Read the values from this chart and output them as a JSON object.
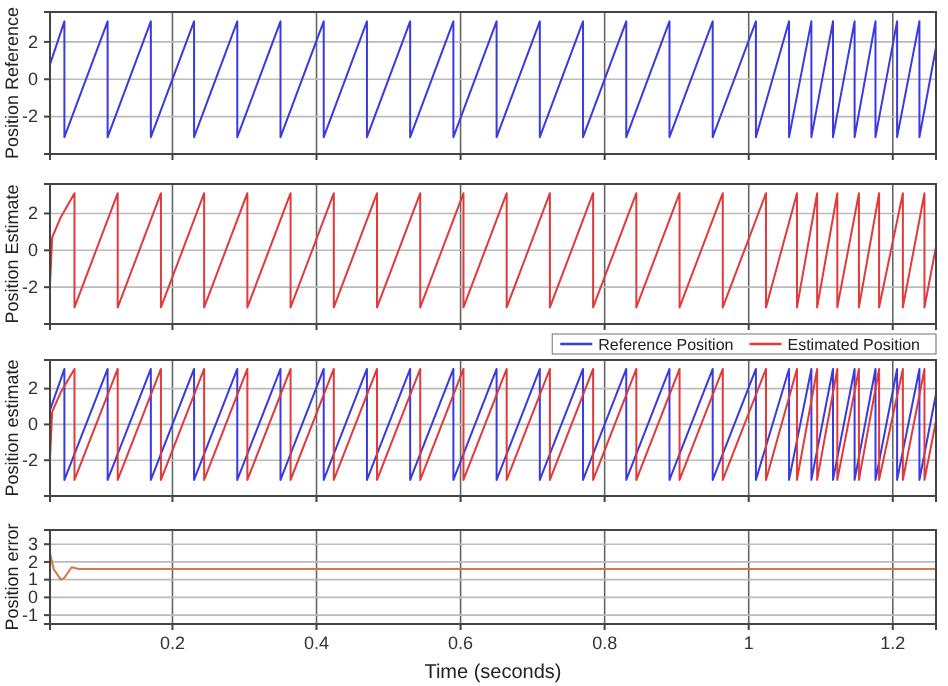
{
  "chart_data": [
    {
      "type": "line",
      "ylabel": "Position Reference",
      "xlim": [
        0.03,
        1.26
      ],
      "ylim": [
        -4,
        3.6
      ],
      "xticks": [
        0.2,
        0.4,
        0.6,
        0.8,
        1,
        1.2
      ],
      "yticks": [
        -2,
        0,
        2
      ],
      "grid": true,
      "tick_labels": "y",
      "series": [
        {
          "color": "#3a3ae0",
          "x": [
            0.03,
            0.05,
            0.05,
            0.11,
            0.11,
            0.17,
            0.17,
            0.23,
            0.23,
            0.29,
            0.29,
            0.35,
            0.35,
            0.41,
            0.41,
            0.47,
            0.47,
            0.53,
            0.53,
            0.59,
            0.59,
            0.65,
            0.65,
            0.71,
            0.71,
            0.77,
            0.77,
            0.83,
            0.83,
            0.89,
            0.89,
            0.95,
            0.95,
            1.01,
            1.01,
            1.056,
            1.056,
            1.087,
            1.087,
            1.117,
            1.117,
            1.147,
            1.147,
            1.176,
            1.176,
            1.206,
            1.206,
            1.237,
            1.237,
            1.26
          ],
          "values": [
            0.8,
            3.1,
            -3.1,
            3.1,
            -3.1,
            3.1,
            -3.1,
            3.1,
            -3.1,
            3.1,
            -3.1,
            3.1,
            -3.1,
            3.1,
            -3.1,
            3.1,
            -3.1,
            3.1,
            -3.1,
            3.1,
            -3.1,
            3.1,
            -3.1,
            3.1,
            -3.1,
            3.1,
            -3.1,
            3.1,
            -3.1,
            3.1,
            -3.1,
            3.1,
            -3.1,
            3.1,
            -3.1,
            3.1,
            -3.1,
            3.1,
            -3.1,
            3.1,
            -3.1,
            3.1,
            -3.1,
            3.1,
            -3.1,
            3.1,
            -3.1,
            3.1,
            -3.1,
            1.7
          ]
        }
      ]
    },
    {
      "type": "line",
      "ylabel": "Position Estimate",
      "xlim": [
        0.03,
        1.26
      ],
      "ylim": [
        -4,
        3.6
      ],
      "xticks": [
        0.2,
        0.4,
        0.6,
        0.8,
        1,
        1.2
      ],
      "yticks": [
        -2,
        0,
        2
      ],
      "grid": true,
      "tick_labels": "y",
      "series": [
        {
          "color": "#e03a3a",
          "x": [
            0.03,
            0.033,
            0.045,
            0.064,
            0.064,
            0.124,
            0.124,
            0.184,
            0.184,
            0.244,
            0.244,
            0.304,
            0.304,
            0.364,
            0.364,
            0.424,
            0.424,
            0.484,
            0.484,
            0.544,
            0.544,
            0.604,
            0.604,
            0.664,
            0.664,
            0.724,
            0.724,
            0.784,
            0.784,
            0.844,
            0.844,
            0.904,
            0.904,
            0.964,
            0.964,
            1.024,
            1.024,
            1.067,
            1.067,
            1.095,
            1.095,
            1.123,
            1.123,
            1.153,
            1.153,
            1.181,
            1.181,
            1.214,
            1.214,
            1.244,
            1.244,
            1.26
          ],
          "values": [
            -1.9,
            0.7,
            1.8,
            3.1,
            -3.1,
            3.1,
            -3.1,
            3.1,
            -3.1,
            3.1,
            -3.1,
            3.1,
            -3.1,
            3.1,
            -3.1,
            3.1,
            -3.1,
            3.1,
            -3.1,
            3.1,
            -3.1,
            3.1,
            -3.1,
            3.1,
            -3.1,
            3.1,
            -3.1,
            3.1,
            -3.1,
            3.1,
            -3.1,
            3.1,
            -3.1,
            3.1,
            -3.1,
            3.1,
            -3.1,
            3.1,
            -3.1,
            3.1,
            -3.1,
            3.1,
            -3.1,
            3.1,
            -3.1,
            3.1,
            -3.1,
            3.1,
            -3.1,
            3.1,
            -3.1,
            0.2
          ]
        }
      ]
    },
    {
      "type": "line",
      "ylabel": "Position estimate",
      "xlim": [
        0.03,
        1.26
      ],
      "ylim": [
        -4,
        3.6
      ],
      "xticks": [
        0.2,
        0.4,
        0.6,
        0.8,
        1,
        1.2
      ],
      "yticks": [
        -2,
        0,
        2
      ],
      "grid": true,
      "tick_labels": "y",
      "legend": "top right",
      "series": [
        {
          "name": "Reference Position",
          "color": "#3a3ae0",
          "x": [
            0.03,
            0.05,
            0.05,
            0.11,
            0.11,
            0.17,
            0.17,
            0.23,
            0.23,
            0.29,
            0.29,
            0.35,
            0.35,
            0.41,
            0.41,
            0.47,
            0.47,
            0.53,
            0.53,
            0.59,
            0.59,
            0.65,
            0.65,
            0.71,
            0.71,
            0.77,
            0.77,
            0.83,
            0.83,
            0.89,
            0.89,
            0.95,
            0.95,
            1.01,
            1.01,
            1.056,
            1.056,
            1.087,
            1.087,
            1.117,
            1.117,
            1.147,
            1.147,
            1.176,
            1.176,
            1.206,
            1.206,
            1.237,
            1.237,
            1.26
          ],
          "values": [
            0.8,
            3.1,
            -3.1,
            3.1,
            -3.1,
            3.1,
            -3.1,
            3.1,
            -3.1,
            3.1,
            -3.1,
            3.1,
            -3.1,
            3.1,
            -3.1,
            3.1,
            -3.1,
            3.1,
            -3.1,
            3.1,
            -3.1,
            3.1,
            -3.1,
            3.1,
            -3.1,
            3.1,
            -3.1,
            3.1,
            -3.1,
            3.1,
            -3.1,
            3.1,
            -3.1,
            3.1,
            -3.1,
            3.1,
            -3.1,
            3.1,
            -3.1,
            3.1,
            -3.1,
            3.1,
            -3.1,
            3.1,
            -3.1,
            3.1,
            -3.1,
            3.1,
            -3.1,
            1.7
          ]
        },
        {
          "name": "Estimated Position",
          "color": "#e03a3a",
          "x": [
            0.03,
            0.033,
            0.045,
            0.064,
            0.064,
            0.124,
            0.124,
            0.184,
            0.184,
            0.244,
            0.244,
            0.304,
            0.304,
            0.364,
            0.364,
            0.424,
            0.424,
            0.484,
            0.484,
            0.544,
            0.544,
            0.604,
            0.604,
            0.664,
            0.664,
            0.724,
            0.724,
            0.784,
            0.784,
            0.844,
            0.844,
            0.904,
            0.904,
            0.964,
            0.964,
            1.024,
            1.024,
            1.067,
            1.067,
            1.095,
            1.095,
            1.123,
            1.123,
            1.153,
            1.153,
            1.181,
            1.181,
            1.214,
            1.214,
            1.244,
            1.244,
            1.26
          ],
          "values": [
            -1.9,
            0.7,
            1.8,
            3.1,
            -3.1,
            3.1,
            -3.1,
            3.1,
            -3.1,
            3.1,
            -3.1,
            3.1,
            -3.1,
            3.1,
            -3.1,
            3.1,
            -3.1,
            3.1,
            -3.1,
            3.1,
            -3.1,
            3.1,
            -3.1,
            3.1,
            -3.1,
            3.1,
            -3.1,
            3.1,
            -3.1,
            3.1,
            -3.1,
            3.1,
            -3.1,
            3.1,
            -3.1,
            3.1,
            -3.1,
            3.1,
            -3.1,
            3.1,
            -3.1,
            3.1,
            -3.1,
            3.1,
            -3.1,
            3.1,
            -3.1,
            3.1,
            -3.1,
            3.1,
            -3.1,
            0.2
          ]
        }
      ]
    },
    {
      "type": "line",
      "ylabel": "Position error",
      "xlabel": "Time (seconds)",
      "xlim": [
        0.03,
        1.26
      ],
      "ylim": [
        -1.5,
        3.8
      ],
      "xticks": [
        0.2,
        0.4,
        0.6,
        0.8,
        1,
        1.2
      ],
      "yticks": [
        -1,
        0,
        1,
        2,
        3
      ],
      "grid": true,
      "series": [
        {
          "color": "#d4784a",
          "x": [
            0.03,
            0.035,
            0.045,
            0.05,
            0.06,
            0.07,
            0.08,
            1.26
          ],
          "values": [
            2.5,
            1.6,
            1.0,
            1.1,
            1.7,
            1.6,
            1.6,
            1.6
          ]
        }
      ]
    }
  ]
}
